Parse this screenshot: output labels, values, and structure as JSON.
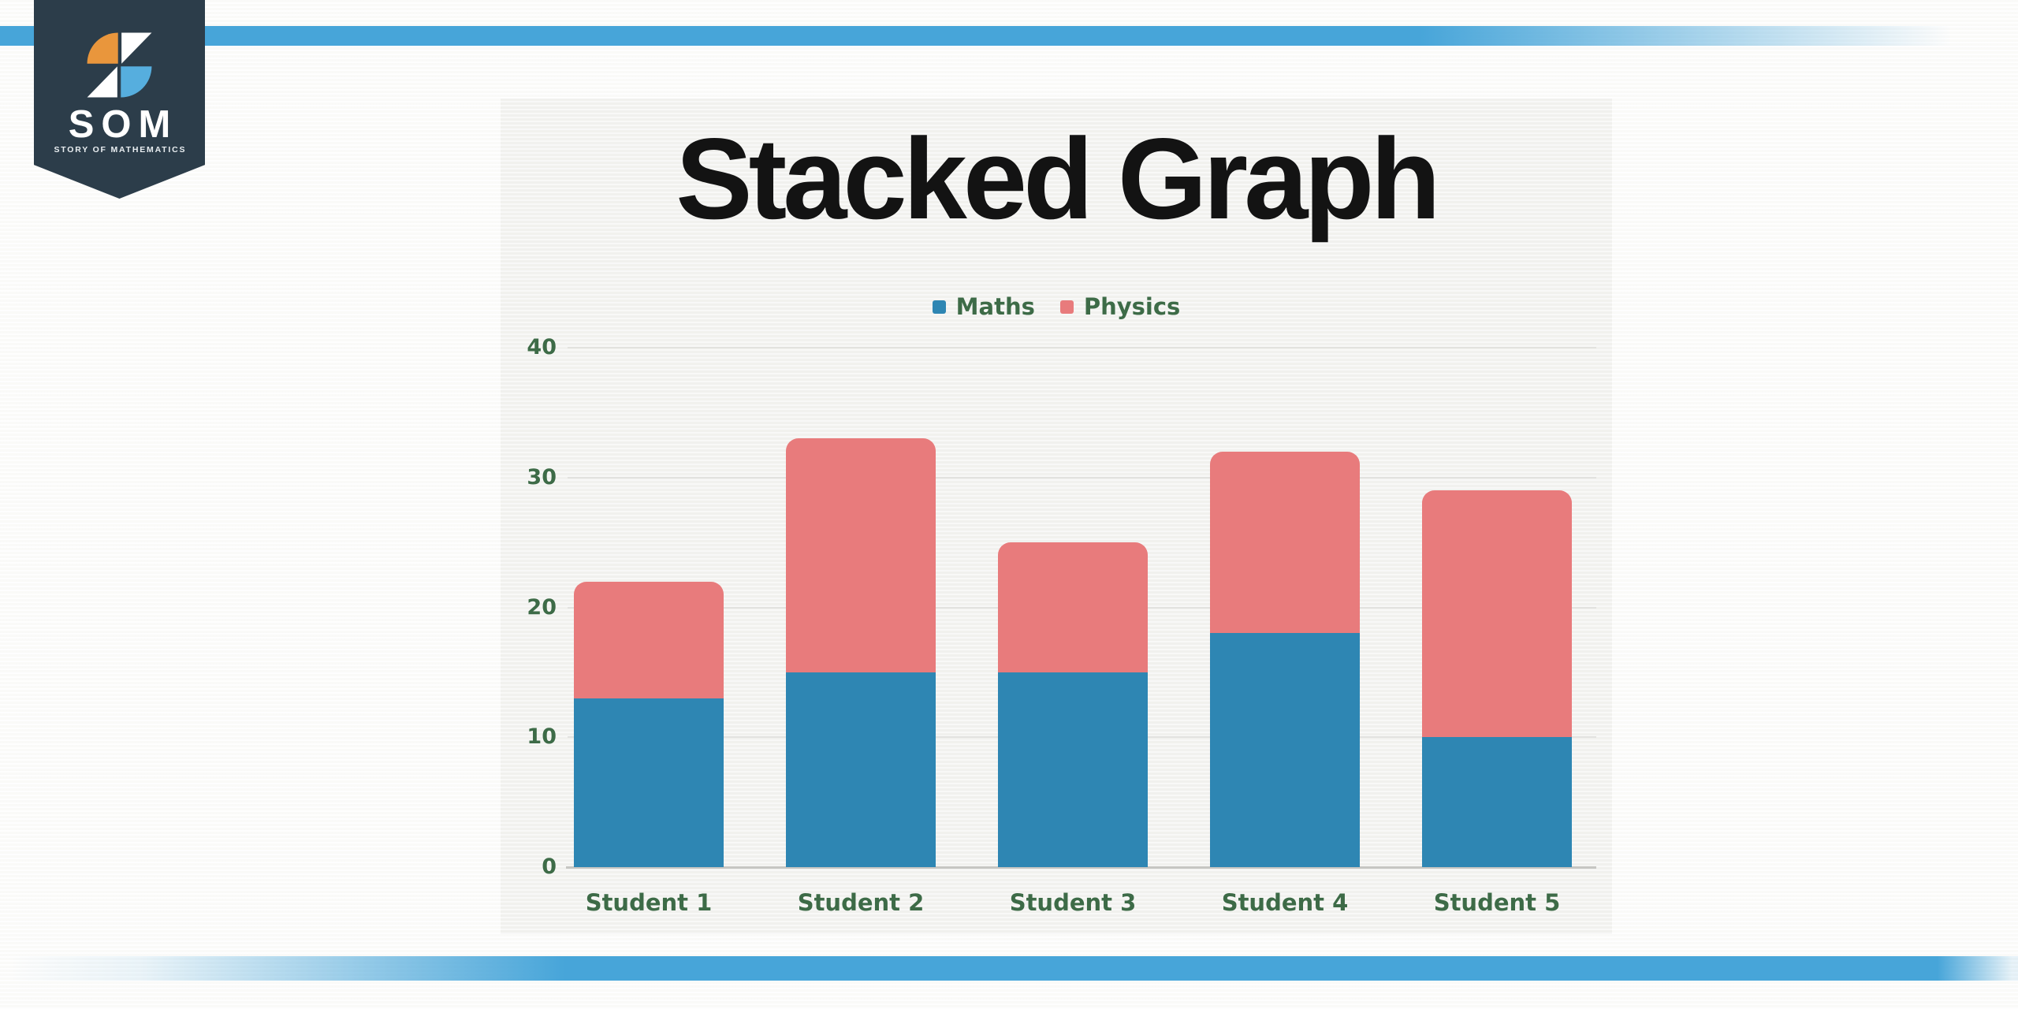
{
  "logo": {
    "acronym": "SOM",
    "tagline": "STORY OF MATHEMATICS",
    "icon": "som-pinwheel-icon"
  },
  "colors": {
    "accent_stripe": "#47a5d9",
    "panel_background": "#f3f3f0",
    "maths_series": "#2e86b3",
    "physics_series": "#e87b7c",
    "axis_text_green": "#3d6b47",
    "title_text": "#131313",
    "gridline": "#e2e2df",
    "baseline": "#c6c6c2",
    "logo_background": "#2c3d4a",
    "logo_orange": "#e9963c",
    "logo_light_blue": "#56aede"
  },
  "chart_data": {
    "type": "bar",
    "stacked": true,
    "title": "Stacked Graph",
    "categories": [
      "Student 1",
      "Student 2",
      "Student 3",
      "Student 4",
      "Student 5"
    ],
    "series": [
      {
        "name": "Maths",
        "color": "#2e86b3",
        "values": [
          13,
          15,
          15,
          18,
          10
        ]
      },
      {
        "name": "Physics",
        "color": "#e87b7c",
        "values": [
          9,
          18,
          10,
          14,
          19
        ]
      }
    ],
    "stack_totals": [
      22,
      33,
      25,
      32,
      29
    ],
    "xlabel": "",
    "ylabel": "",
    "ylim": [
      0,
      40
    ],
    "yticks": [
      0,
      10,
      20,
      30,
      40
    ],
    "grid": "horizontal",
    "legend_position": "top-center"
  }
}
